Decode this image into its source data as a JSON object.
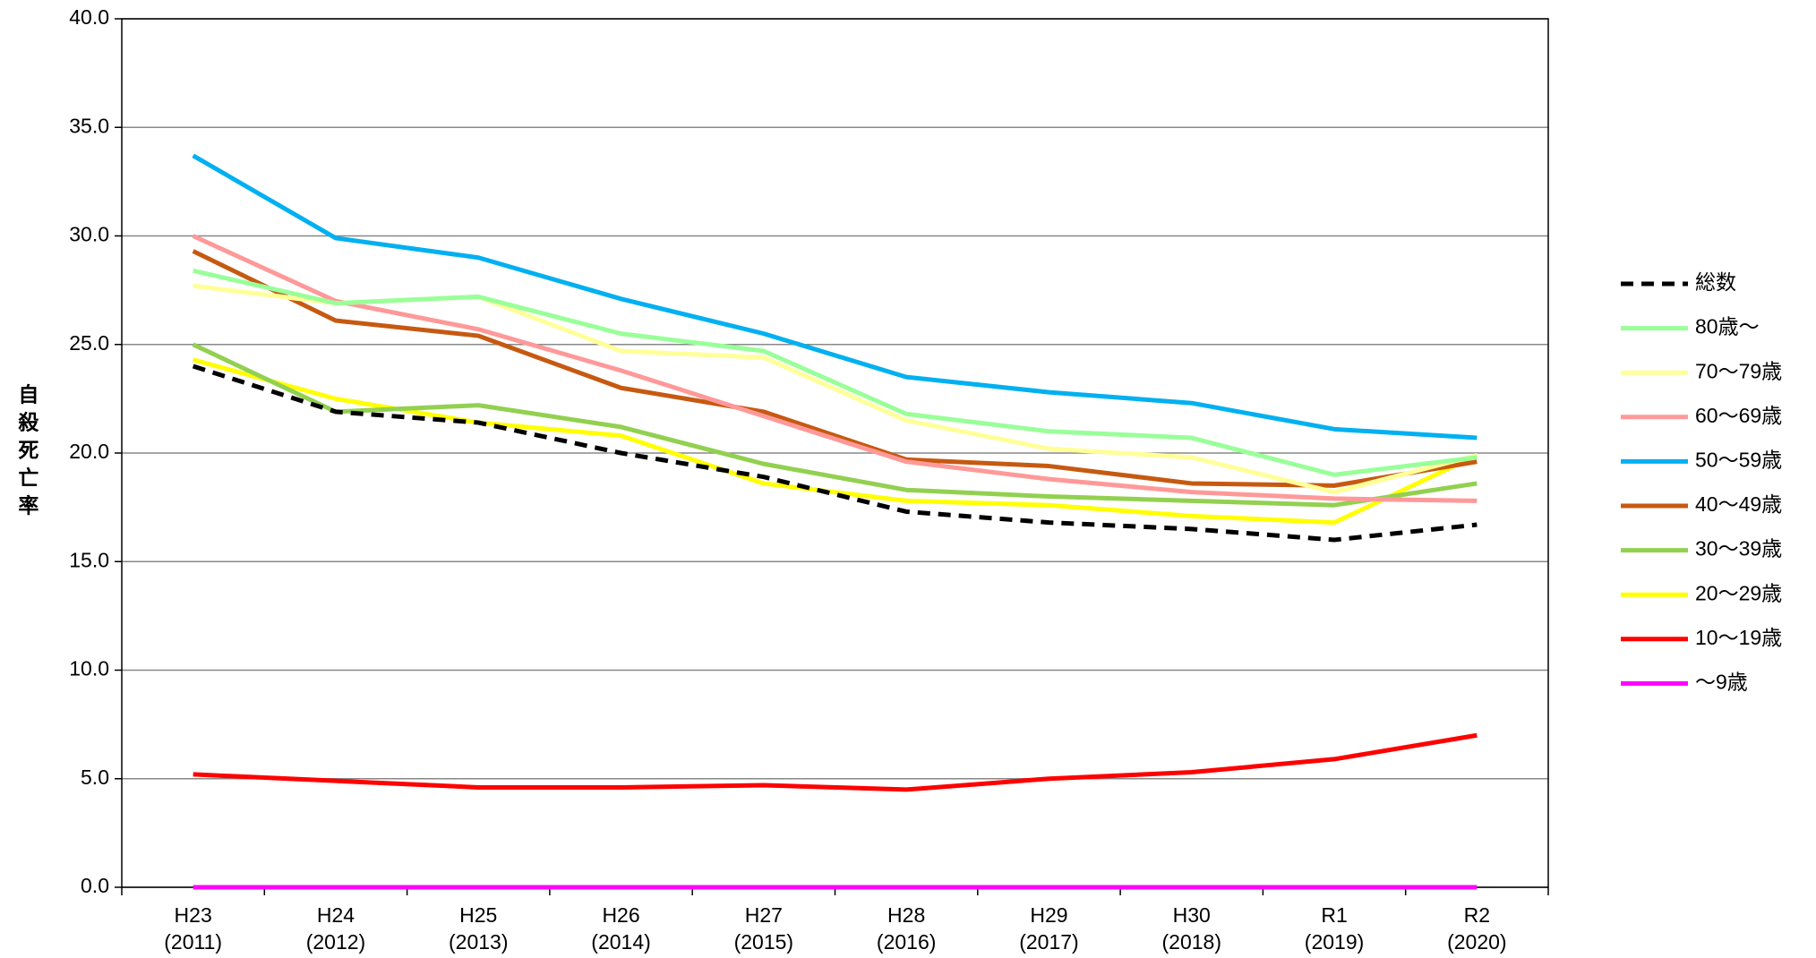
{
  "chart_data": {
    "type": "line",
    "y_label": "自殺死亡率",
    "categories": [
      [
        "H23",
        "(2011)"
      ],
      [
        "H24",
        "(2012)"
      ],
      [
        "H25",
        "(2013)"
      ],
      [
        "H26",
        "(2014)"
      ],
      [
        "H27",
        "(2015)"
      ],
      [
        "H28",
        "(2016)"
      ],
      [
        "H29",
        "(2017)"
      ],
      [
        "H30",
        "(2018)"
      ],
      [
        "R1",
        "(2019)"
      ],
      [
        "R2",
        "(2020)"
      ]
    ],
    "series": [
      {
        "name": "総数",
        "color": "#000000",
        "dashed": true,
        "values": [
          24.0,
          21.9,
          21.4,
          20.0,
          18.9,
          17.3,
          16.8,
          16.5,
          16.0,
          16.7
        ]
      },
      {
        "name": "80歳～",
        "color": "#99ff99",
        "values": [
          28.4,
          26.9,
          27.2,
          25.5,
          24.7,
          21.8,
          21.0,
          20.7,
          19.0,
          19.8
        ]
      },
      {
        "name": "70～79歳",
        "color": "#ffff99",
        "values": [
          27.7,
          26.9,
          27.2,
          24.7,
          24.4,
          21.5,
          20.2,
          19.8,
          18.2,
          19.9
        ]
      },
      {
        "name": "60～69歳",
        "color": "#ff9999",
        "values": [
          30.0,
          27.0,
          25.7,
          23.8,
          21.7,
          19.6,
          18.8,
          18.2,
          17.9,
          17.8
        ]
      },
      {
        "name": "50～59歳",
        "color": "#00b0f0",
        "values": [
          33.7,
          29.9,
          29.0,
          27.1,
          25.5,
          23.5,
          22.8,
          22.3,
          21.1,
          20.7
        ]
      },
      {
        "name": "40～49歳",
        "color": "#c65911",
        "values": [
          29.3,
          26.1,
          25.4,
          23.0,
          21.9,
          19.7,
          19.4,
          18.6,
          18.5,
          19.6
        ]
      },
      {
        "name": "30～39歳",
        "color": "#92d050",
        "values": [
          25.0,
          21.9,
          22.2,
          21.2,
          19.5,
          18.3,
          18.0,
          17.8,
          17.6,
          18.6
        ]
      },
      {
        "name": "20～29歳",
        "color": "#ffff00",
        "values": [
          24.3,
          22.5,
          21.4,
          20.8,
          18.6,
          17.8,
          17.6,
          17.1,
          16.8,
          19.9
        ]
      },
      {
        "name": "10～19歳",
        "color": "#ff0000",
        "values": [
          5.2,
          4.9,
          4.6,
          4.6,
          4.7,
          4.5,
          5.0,
          5.3,
          5.9,
          7.0
        ]
      },
      {
        "name": "～9歳",
        "color": "#ff00ff",
        "values": [
          0,
          0,
          0,
          0,
          0,
          0,
          0,
          0,
          0,
          0
        ]
      }
    ],
    "ylim": [
      0,
      40
    ],
    "yticks": [
      {
        "value": 0,
        "label": "0.0"
      },
      {
        "value": 5,
        "label": "5.0"
      },
      {
        "value": 10,
        "label": "10.0"
      },
      {
        "value": 15,
        "label": "15.0"
      },
      {
        "value": 20,
        "label": "20.0"
      },
      {
        "value": 25,
        "label": "25.0"
      },
      {
        "value": 30,
        "label": "30.0"
      },
      {
        "value": 35,
        "label": "35.0"
      },
      {
        "value": 40,
        "label": "40.0"
      }
    ],
    "grid": true,
    "legend": "right"
  }
}
